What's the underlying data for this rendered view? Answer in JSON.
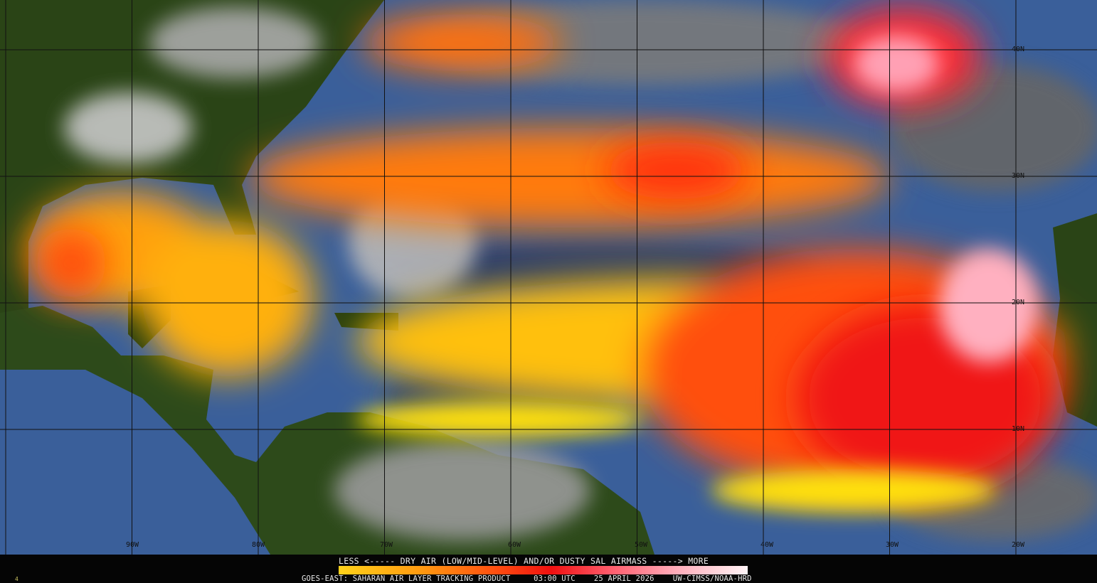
{
  "map": {
    "longitude_labels": [
      "90W",
      "80W",
      "70W",
      "60W",
      "50W",
      "40W",
      "30W",
      "20W"
    ],
    "latitude_labels": [
      "40N",
      "30N",
      "20N",
      "10N"
    ],
    "colors": {
      "ocean": "#3a5f9a",
      "land": "#1e3a10",
      "clouds": "#a8a8a8",
      "dust_low": "#ffd21a",
      "dust_mid": "#ff5010",
      "dust_high": "#ffb0c0"
    }
  },
  "legend": {
    "title": "LESS <----- DRY AIR (LOW/MID-LEVEL) AND/OR DUSTY SAL AIRMASS -----> MORE",
    "scale": [
      "#ffd21a",
      "#ff9a10",
      "#ff5010",
      "#f01010",
      "#ff5a6a",
      "#ffaab8",
      "#fff4f6"
    ]
  },
  "footer": {
    "product": "GOES-EAST: SAHARAN AIR LAYER TRACKING PRODUCT",
    "time": "03:00 UTC",
    "date": "25 APRIL 2026",
    "credit": "UW-CIMSS/NOAA-HRD"
  },
  "corner_mark": "4"
}
